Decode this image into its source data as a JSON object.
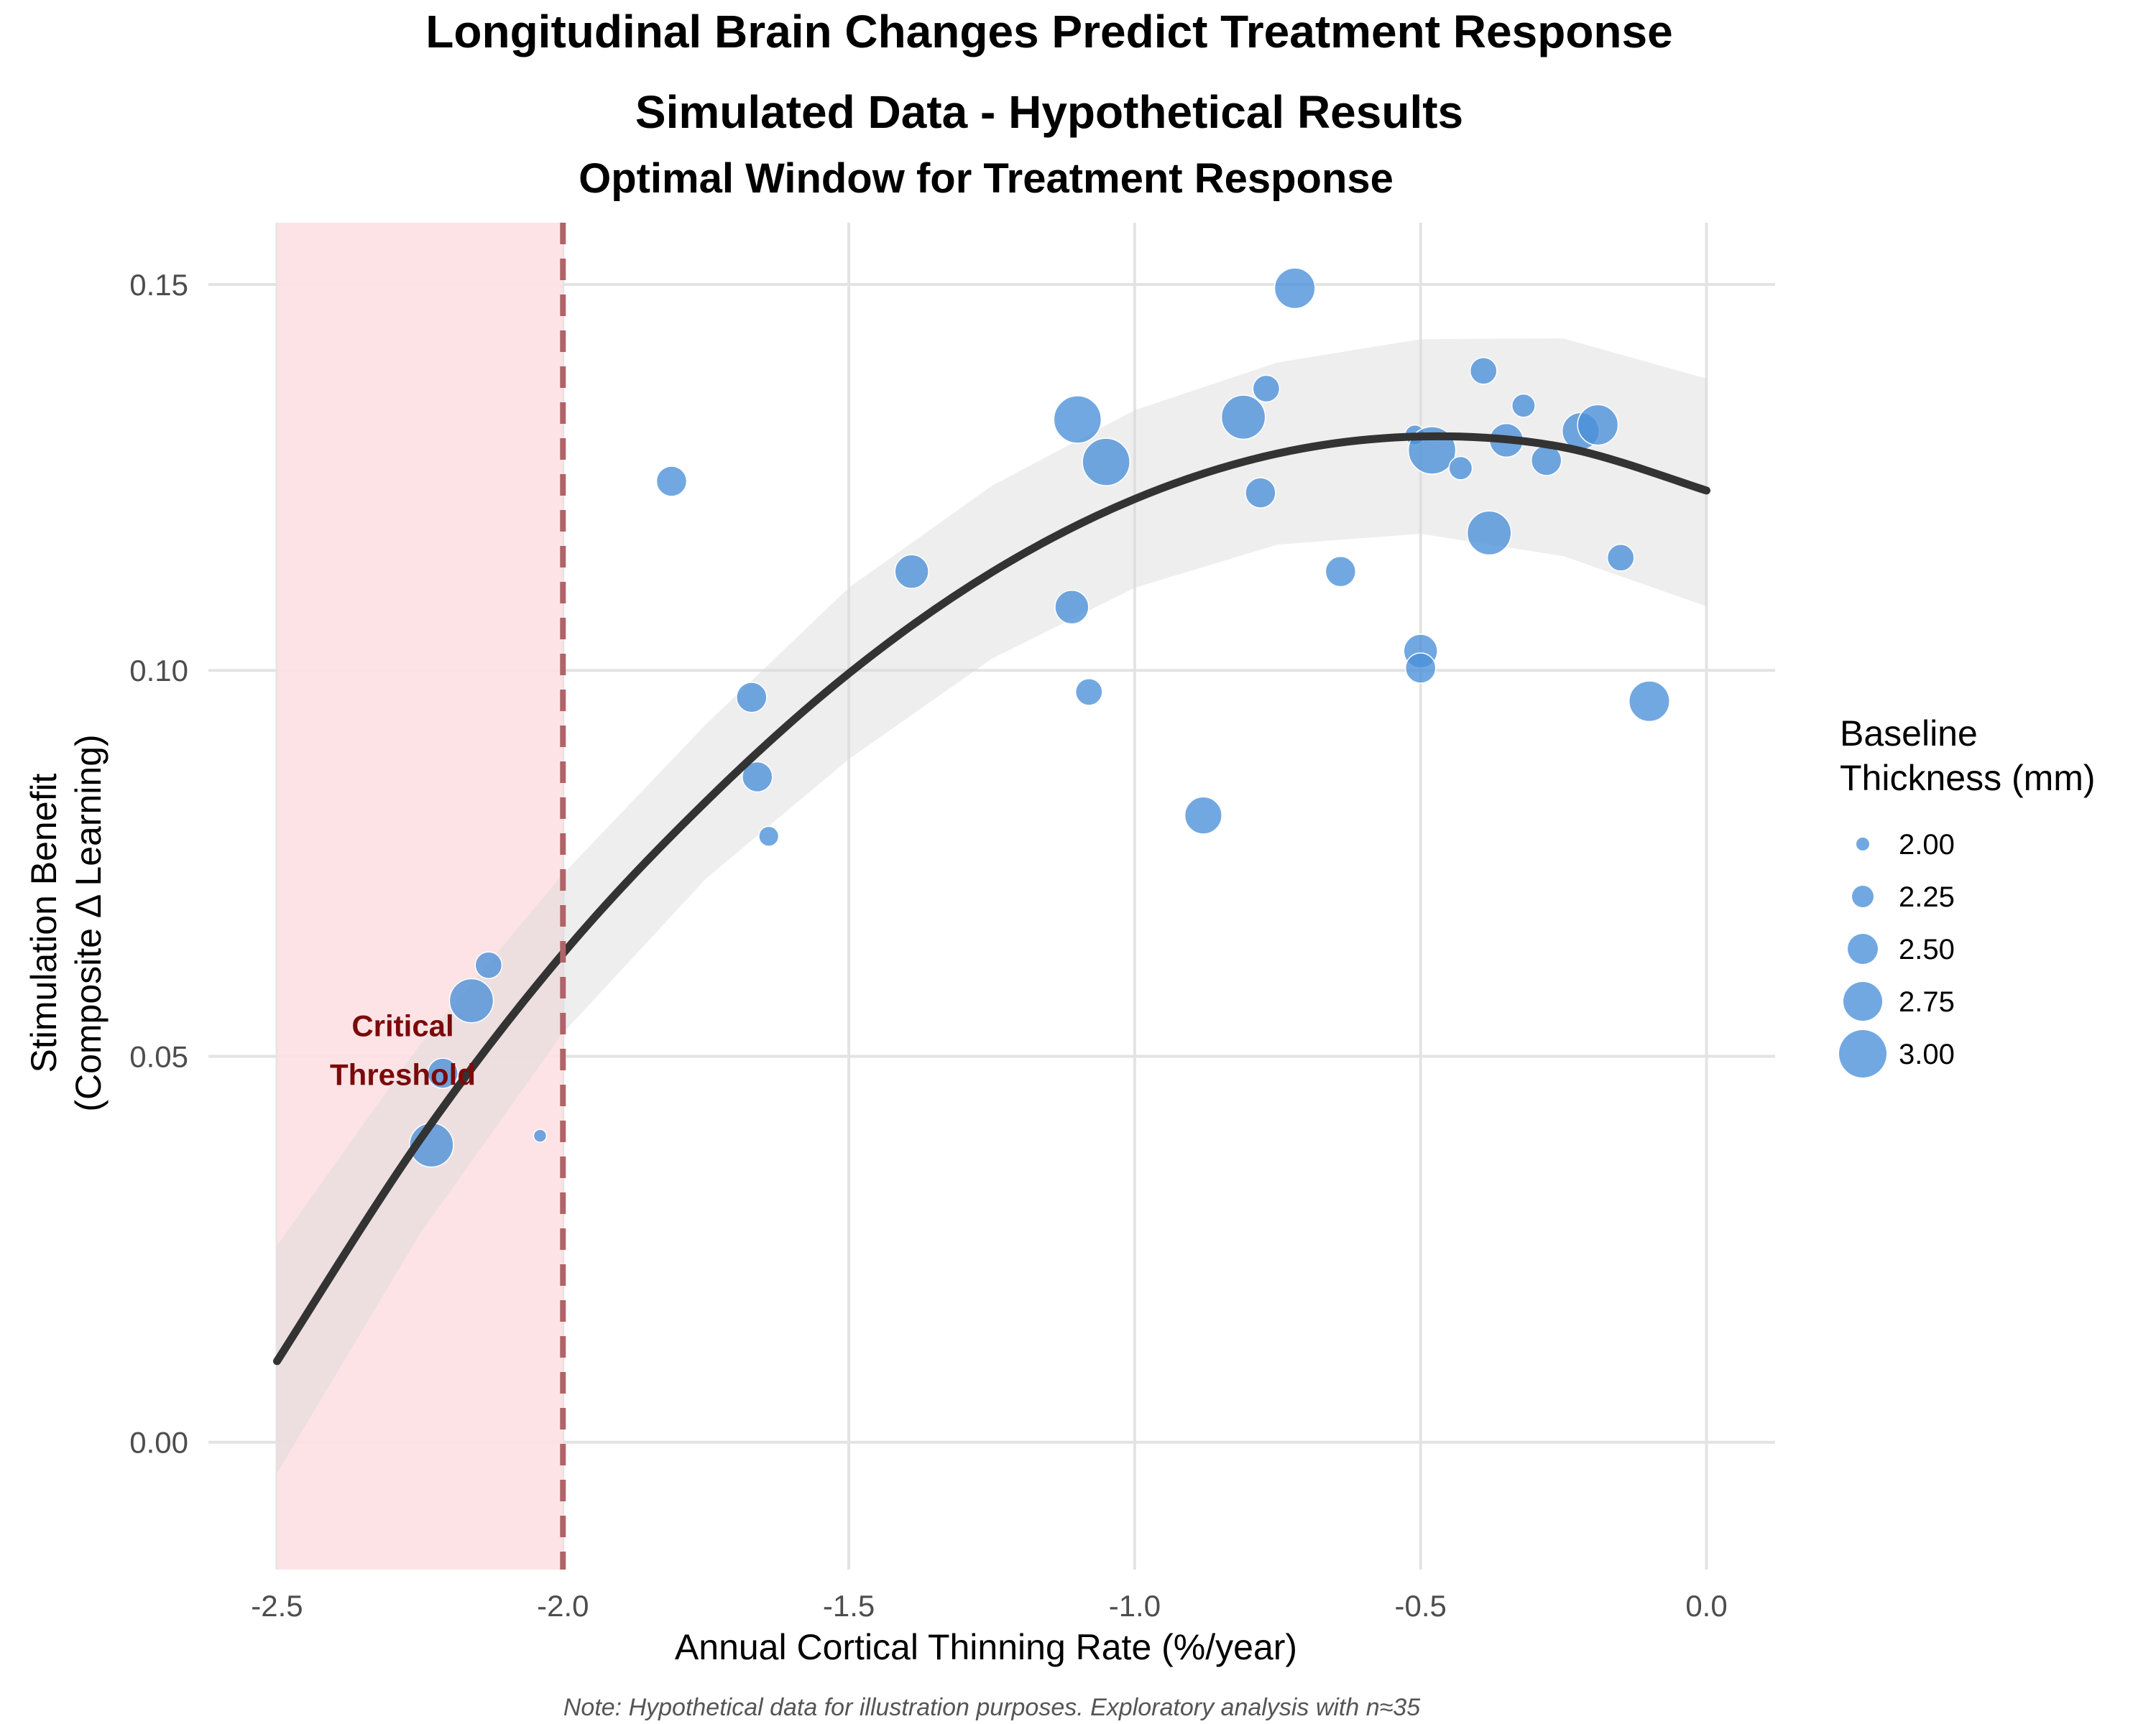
{
  "chart_data": {
    "type": "scatter",
    "title": "Longitudinal Brain Changes Predict Treatment Response",
    "subtitle": "Simulated Data - Hypothetical Results",
    "panel_title": "Optimal Window for Treatment Response",
    "xlabel": "Annual Cortical Thinning Rate (%/year)",
    "ylabel_line1": "Stimulation Benefit",
    "ylabel_line2": "(Composite Δ Learning)",
    "xlim": [
      -2.62,
      0.12
    ],
    "ylim": [
      -0.0165,
      0.158
    ],
    "x_ticks": [
      -2.5,
      -2.0,
      -1.5,
      -1.0,
      -0.5,
      0.0
    ],
    "x_tick_labels": [
      "-2.5",
      "-2.0",
      "-1.5",
      "-1.0",
      "-0.5",
      "0.0"
    ],
    "y_ticks": [
      0.0,
      0.05,
      0.1,
      0.15
    ],
    "y_tick_labels": [
      "0.00",
      "0.05",
      "0.10",
      "0.15"
    ],
    "grid": true,
    "shaded_region": {
      "x_from": -2.5,
      "x_to": -2.0,
      "color": "#fde0e3"
    },
    "threshold_line": {
      "x": -2.0,
      "color": "#b06468",
      "style": "dashed"
    },
    "annotation": {
      "line1": "Critical",
      "line2": "Threshold",
      "x": -2.28,
      "y": 0.0515,
      "color": "#7b0a0a"
    },
    "fit_curve": {
      "x": [
        -2.5,
        -2.25,
        -2.0,
        -1.75,
        -1.5,
        -1.25,
        -1.0,
        -0.75,
        -0.5,
        -0.25,
        0.0
      ],
      "y": [
        0.0105,
        0.0392,
        0.0633,
        0.083,
        0.0996,
        0.1127,
        0.1222,
        0.1281,
        0.1303,
        0.1289,
        0.1233
      ],
      "band_lower": [
        -0.004,
        0.027,
        0.053,
        0.073,
        0.0885,
        0.1015,
        0.1107,
        0.1163,
        0.1177,
        0.1148,
        0.1083
      ],
      "band_upper": [
        0.0255,
        0.0515,
        0.0736,
        0.093,
        0.1107,
        0.1239,
        0.1337,
        0.1399,
        0.1429,
        0.143,
        0.1378
      ],
      "color": "#333333",
      "band_color": "#d9d9d9"
    },
    "point_color": "#4a90d9",
    "series": [
      {
        "x": [
          -2.23,
          -2.21,
          -2.16,
          -2.13,
          -2.04,
          -1.81,
          -1.67,
          -1.66,
          -1.64,
          -1.39,
          -1.11,
          -1.1,
          -1.08,
          -1.05,
          -0.88,
          -0.81,
          -0.78,
          -0.77,
          -0.72,
          -0.64,
          -0.51,
          -0.5,
          -0.5,
          -0.48,
          -0.43,
          -0.39,
          -0.38,
          -0.35,
          -0.32,
          -0.28,
          -0.22,
          -0.19,
          -0.15,
          -0.1
        ],
        "y": [
          0.0385,
          0.0478,
          0.0572,
          0.0618,
          0.0397,
          0.1245,
          0.0965,
          0.0862,
          0.0785,
          0.1128,
          0.1082,
          0.1325,
          0.0972,
          0.127,
          0.0812,
          0.1328,
          0.123,
          0.1365,
          0.1495,
          0.1128,
          0.1305,
          0.1025,
          0.1003,
          0.1285,
          0.1262,
          0.1388,
          0.1178,
          0.1298,
          0.1343,
          0.1272,
          0.131,
          0.1318,
          0.1146,
          0.096
        ],
        "size": [
          2.9,
          2.5,
          2.9,
          2.4,
          2.0,
          2.5,
          2.5,
          2.5,
          2.2,
          2.6,
          2.6,
          3.0,
          2.4,
          3.0,
          2.7,
          2.9,
          2.5,
          2.4,
          2.8,
          2.5,
          2.2,
          2.6,
          2.5,
          3.0,
          2.3,
          2.4,
          2.9,
          2.6,
          2.3,
          2.5,
          2.7,
          2.8,
          2.4,
          2.8
        ]
      }
    ],
    "legend": {
      "title_line1": "Baseline",
      "title_line2": "Thickness (mm)",
      "entries": [
        {
          "value": 2.0,
          "label": "2.00"
        },
        {
          "value": 2.25,
          "label": "2.25"
        },
        {
          "value": 2.5,
          "label": "2.50"
        },
        {
          "value": 2.75,
          "label": "2.75"
        },
        {
          "value": 3.0,
          "label": "3.00"
        }
      ],
      "placement": "right"
    },
    "caption": "Note: Hypothetical data for illustration purposes. Exploratory analysis with n≈35"
  }
}
